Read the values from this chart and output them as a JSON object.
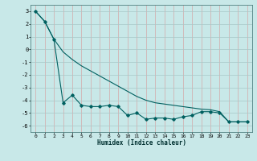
{
  "xlabel": "Humidex (Indice chaleur)",
  "background_color": "#c8e8e8",
  "grid_color_h": "#a8c8c8",
  "grid_color_v": "#d4a8a8",
  "line_color": "#006060",
  "xlim": [
    -0.5,
    23.5
  ],
  "ylim": [
    -6.5,
    3.5
  ],
  "yticks": [
    3,
    2,
    1,
    0,
    -1,
    -2,
    -3,
    -4,
    -5,
    -6
  ],
  "xticks": [
    0,
    1,
    2,
    3,
    4,
    5,
    6,
    7,
    8,
    9,
    10,
    11,
    12,
    13,
    14,
    15,
    16,
    17,
    18,
    19,
    20,
    21,
    22,
    23
  ],
  "series1_x": [
    0,
    1,
    2,
    3,
    4,
    5,
    6,
    7,
    8,
    9,
    10,
    11,
    12,
    13,
    14,
    15,
    16,
    17,
    18,
    19,
    20,
    21,
    22,
    23
  ],
  "series1_y": [
    3.0,
    2.2,
    0.8,
    -4.2,
    -3.6,
    -4.4,
    -4.5,
    -4.5,
    -4.4,
    -4.5,
    -5.2,
    -5.0,
    -5.5,
    -5.4,
    -5.4,
    -5.5,
    -5.3,
    -5.2,
    -4.9,
    -4.9,
    -5.0,
    -5.7,
    -5.7,
    -5.7
  ],
  "series2_x": [
    0,
    1,
    2,
    3,
    4,
    5,
    6,
    7,
    8,
    9,
    10,
    11,
    12,
    13,
    14,
    15,
    16,
    17,
    18,
    19,
    20,
    21,
    22,
    23
  ],
  "series2_y": [
    3.0,
    2.2,
    0.8,
    -0.2,
    -0.8,
    -1.3,
    -1.7,
    -2.1,
    -2.5,
    -2.9,
    -3.3,
    -3.7,
    -4.0,
    -4.2,
    -4.3,
    -4.4,
    -4.5,
    -4.6,
    -4.7,
    -4.75,
    -4.9,
    -5.7,
    -5.7,
    -5.7
  ]
}
